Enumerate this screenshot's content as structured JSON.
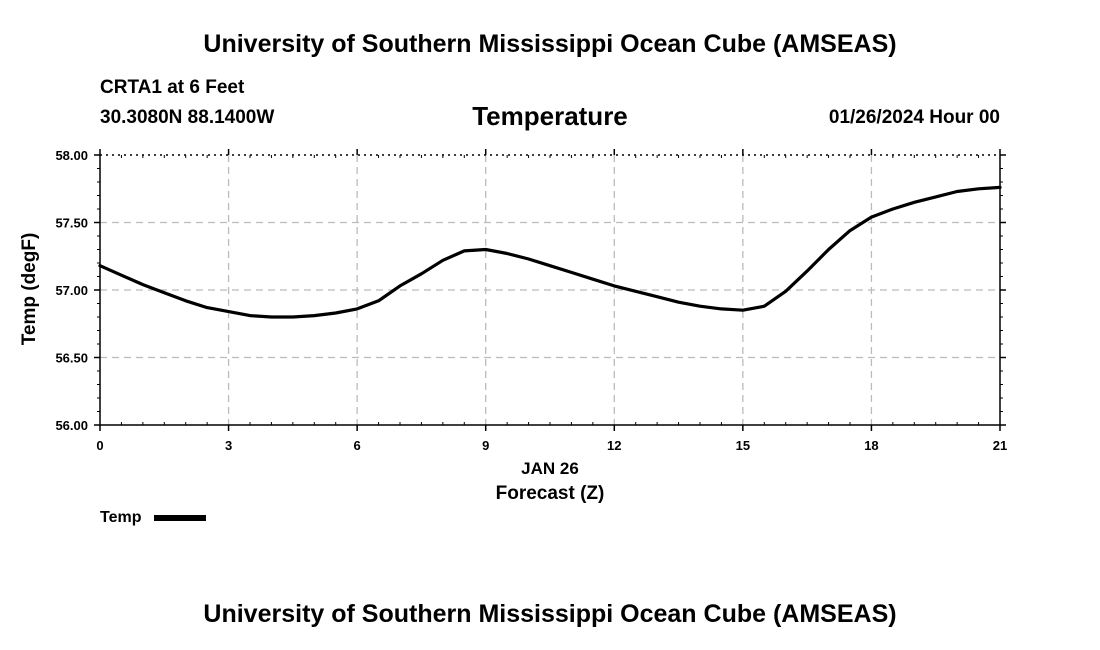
{
  "header": {
    "title": "University of Southern Mississippi Ocean Cube (AMSEAS)",
    "station": "CRTA1 at 6 Feet",
    "coords": "30.3080N  88.1400W",
    "valid_time": "01/26/2024 Hour 00"
  },
  "footer": {
    "title": "University of Southern Mississippi Ocean Cube (AMSEAS)"
  },
  "legend": {
    "label": "Temp",
    "color": "#000000"
  },
  "chart_data": {
    "type": "line",
    "title": "Temperature",
    "ylabel": "Temp (degF)",
    "xlabel": "Forecast (Z)",
    "xdate": "JAN 26",
    "xlim": [
      0,
      21
    ],
    "ylim": [
      56.0,
      58.0
    ],
    "xticks": [
      0,
      3,
      6,
      9,
      12,
      15,
      18,
      21
    ],
    "yticks": [
      56.0,
      56.5,
      57.0,
      57.5,
      58.0
    ],
    "ytick_labels": [
      "56.00",
      "56.50",
      "57.00",
      "57.50",
      "58.00"
    ],
    "grid": true,
    "series": [
      {
        "name": "Temp",
        "color": "#000000",
        "x": [
          0,
          0.5,
          1,
          1.5,
          2,
          2.5,
          3,
          3.5,
          4,
          4.5,
          5,
          5.5,
          6,
          6.5,
          7,
          7.5,
          8,
          8.5,
          9,
          9.5,
          10,
          10.5,
          11,
          11.5,
          12,
          12.5,
          13,
          13.5,
          14,
          14.5,
          15,
          15.5,
          16,
          16.5,
          17,
          17.5,
          18,
          18.5,
          19,
          19.5,
          20,
          20.5,
          21
        ],
        "values": [
          57.18,
          57.11,
          57.04,
          56.98,
          56.92,
          56.87,
          56.84,
          56.81,
          56.8,
          56.8,
          56.81,
          56.83,
          56.86,
          56.92,
          57.03,
          57.12,
          57.22,
          57.29,
          57.3,
          57.27,
          57.23,
          57.18,
          57.13,
          57.08,
          57.03,
          56.99,
          56.95,
          56.91,
          56.88,
          56.86,
          56.85,
          56.88,
          56.99,
          57.14,
          57.3,
          57.44,
          57.54,
          57.6,
          57.65,
          57.69,
          57.73,
          57.75,
          57.76
        ]
      }
    ]
  }
}
